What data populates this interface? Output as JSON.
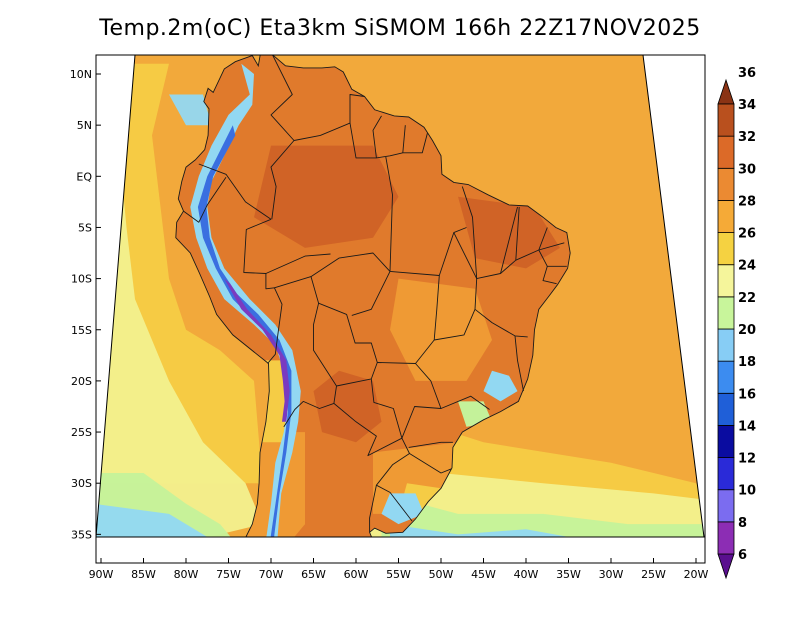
{
  "title": "Temp.2m(oC) Eta3km SiSMOM 166h 22Z17NOV2025",
  "lat_ticks": [
    {
      "lat": 10,
      "label": "10N"
    },
    {
      "lat": 5,
      "label": "5N"
    },
    {
      "lat": 0,
      "label": "EQ"
    },
    {
      "lat": -5,
      "label": "5S"
    },
    {
      "lat": -10,
      "label": "10S"
    },
    {
      "lat": -15,
      "label": "15S"
    },
    {
      "lat": -20,
      "label": "20S"
    },
    {
      "lat": -25,
      "label": "25S"
    },
    {
      "lat": -30,
      "label": "30S"
    },
    {
      "lat": -35,
      "label": "35S"
    }
  ],
  "lon_ticks": [
    {
      "lon": -90,
      "label": "90W"
    },
    {
      "lon": -85,
      "label": "85W"
    },
    {
      "lon": -80,
      "label": "80W"
    },
    {
      "lon": -75,
      "label": "75W"
    },
    {
      "lon": -70,
      "label": "70W"
    },
    {
      "lon": -65,
      "label": "65W"
    },
    {
      "lon": -60,
      "label": "60W"
    },
    {
      "lon": -55,
      "label": "55W"
    },
    {
      "lon": -50,
      "label": "50W"
    },
    {
      "lon": -45,
      "label": "45W"
    },
    {
      "lon": -40,
      "label": "40W"
    },
    {
      "lon": -35,
      "label": "35W"
    },
    {
      "lon": -30,
      "label": "30W"
    },
    {
      "lon": -25,
      "label": "25W"
    },
    {
      "lon": -20,
      "label": "20W"
    }
  ],
  "colorbar": {
    "labels": [
      "6",
      "8",
      "10",
      "12",
      "14",
      "16",
      "18",
      "20",
      "22",
      "24",
      "26",
      "28",
      "30",
      "32",
      "34",
      "36"
    ],
    "colors": [
      "#5a0f8f",
      "#8c2db4",
      "#7b6cf0",
      "#2a2ad8",
      "#0a0ca0",
      "#1f5fd8",
      "#3c8cf0",
      "#87cdf5",
      "#c8f59b",
      "#f5f59b",
      "#f5d241",
      "#f5aa37",
      "#eb8a32",
      "#dc6a28",
      "#b9501e",
      "#8a3314"
    ]
  },
  "map_colors": {
    "ocean_warm": "#f2a93b",
    "ocean_mid": "#f5cc45",
    "ocean_cool": "#f2f08e",
    "ocean_cold": "#c4f29a",
    "ocean_colder": "#92d8f2",
    "ocean_coldest": "#3b8ee8",
    "land_hot": "#e07a2c",
    "land_hotter": "#d06326",
    "land_warm": "#ef9a34",
    "andes_cold": "#3a6fe0",
    "andes_coldest": "#7a3bc0",
    "border": "#1a1a1a"
  }
}
